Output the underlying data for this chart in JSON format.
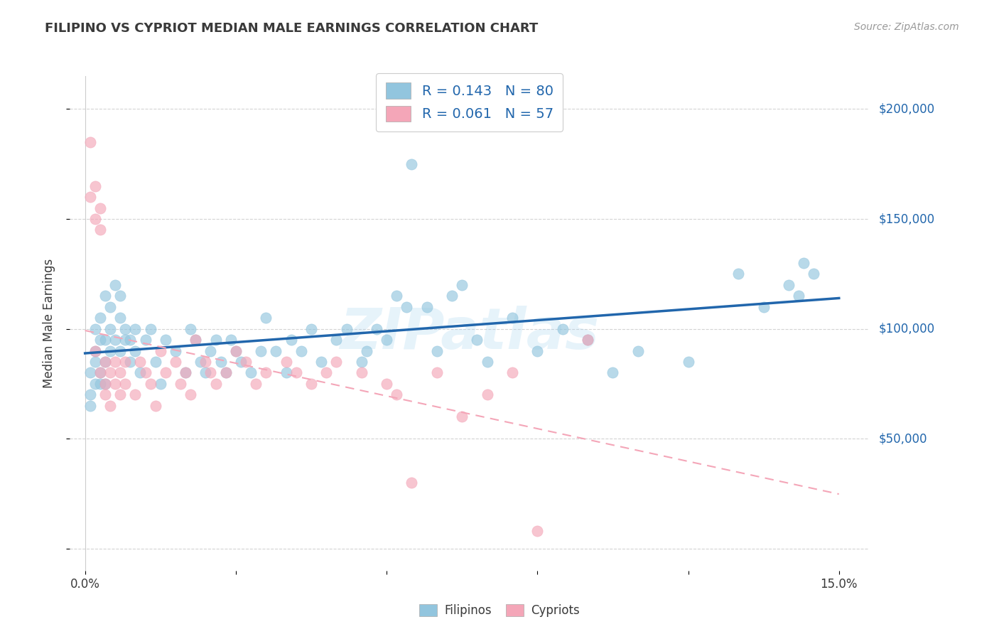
{
  "title": "FILIPINO VS CYPRIOT MEDIAN MALE EARNINGS CORRELATION CHART",
  "source": "Source: ZipAtlas.com",
  "ylabel": "Median Male Earnings",
  "watermark": "ZIPatlas",
  "legend_R_filipino": "0.143",
  "legend_N_filipino": "80",
  "legend_R_cypriot": "0.061",
  "legend_N_cypriot": "57",
  "filipino_color": "#92c5de",
  "cypriot_color": "#f4a6b8",
  "filipino_line_color": "#2166ac",
  "cypriot_line_color": "#f4a6b8",
  "text_color": "#3a3a3a",
  "blue_label_color": "#2166ac",
  "grid_color": "#c8c8c8",
  "background_color": "#ffffff",
  "fil_intercept": 90000,
  "fil_slope": 250000,
  "cyp_intercept": 83000,
  "cyp_slope": 95000,
  "filipinos_label": "Filipinos",
  "cypriots_label": "Cypriots"
}
